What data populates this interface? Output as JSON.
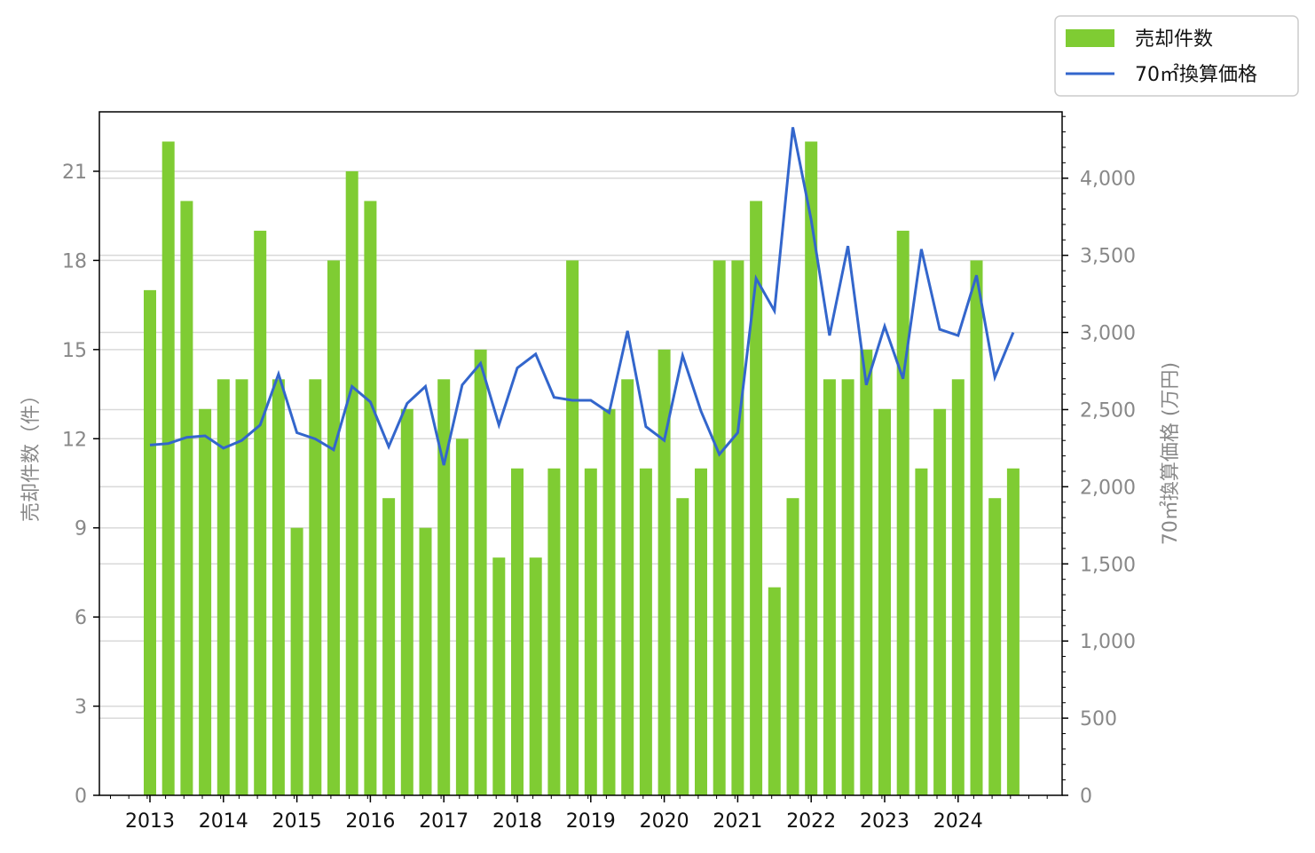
{
  "chart_data": {
    "type": "bar+line",
    "x": [
      "2013Q1",
      "2013Q2",
      "2013Q3",
      "2013Q4",
      "2014Q1",
      "2014Q2",
      "2014Q3",
      "2014Q4",
      "2015Q1",
      "2015Q2",
      "2015Q3",
      "2015Q4",
      "2016Q1",
      "2016Q2",
      "2016Q3",
      "2016Q4",
      "2017Q1",
      "2017Q2",
      "2017Q3",
      "2017Q4",
      "2018Q1",
      "2018Q2",
      "2018Q3",
      "2018Q4",
      "2019Q1",
      "2019Q2",
      "2019Q3",
      "2019Q4",
      "2020Q1",
      "2020Q2",
      "2020Q3",
      "2020Q4",
      "2021Q1",
      "2021Q2",
      "2021Q3",
      "2021Q4",
      "2022Q1",
      "2022Q2",
      "2022Q3",
      "2022Q4",
      "2023Q1",
      "2023Q2",
      "2023Q3",
      "2023Q4",
      "2024Q1",
      "2024Q2",
      "2024Q3",
      "2024Q4"
    ],
    "year_labels": [
      "2013",
      "2014",
      "2015",
      "2016",
      "2017",
      "2018",
      "2019",
      "2020",
      "2021",
      "2022",
      "2023",
      "2024"
    ],
    "bars": {
      "name": "売却件数",
      "color": "#7fcc33",
      "values": [
        17,
        22,
        20,
        13,
        14,
        14,
        19,
        14,
        9,
        14,
        18,
        21,
        20,
        10,
        13,
        9,
        14,
        12,
        15,
        8,
        11,
        8,
        11,
        18,
        11,
        13,
        14,
        11,
        15,
        10,
        11,
        18,
        18,
        20,
        7,
        10,
        22,
        14,
        14,
        15,
        13,
        19,
        11,
        13,
        14,
        18,
        10,
        11
      ]
    },
    "line": {
      "name": "70㎡換算価格",
      "color": "#3366cc",
      "values": [
        2270,
        2280,
        2320,
        2330,
        2250,
        2300,
        2400,
        2730,
        2350,
        2310,
        2240,
        2650,
        2550,
        2260,
        2540,
        2650,
        2140,
        2660,
        2800,
        2400,
        2770,
        2860,
        2580,
        2560,
        2560,
        2480,
        3010,
        2390,
        2300,
        2850,
        2490,
        2210,
        2350,
        3350,
        3140,
        4330,
        3730,
        2980,
        3560,
        2660,
        3040,
        2700,
        3540,
        3020,
        2980,
        3370,
        2710,
        3000
      ]
    },
    "y_left": {
      "label": "売却件数（件）",
      "ylim": [
        0,
        23
      ],
      "ticks": [
        "0",
        "3",
        "6",
        "9",
        "12",
        "15",
        "18",
        "21"
      ]
    },
    "y_right": {
      "label": "70㎡換算価格 (万円)",
      "ylim": [
        0,
        4430
      ],
      "ticks": [
        "0",
        "500",
        "1,000",
        "1,500",
        "2,000",
        "2,500",
        "3,000",
        "3,500",
        "4,000"
      ]
    },
    "grid": "horizontal (right axis)",
    "legend_placement": "outside top-right",
    "colors": {
      "tick_label": "#888888",
      "x_tick_label": "#111111",
      "grid": "#d9d9d9"
    }
  }
}
